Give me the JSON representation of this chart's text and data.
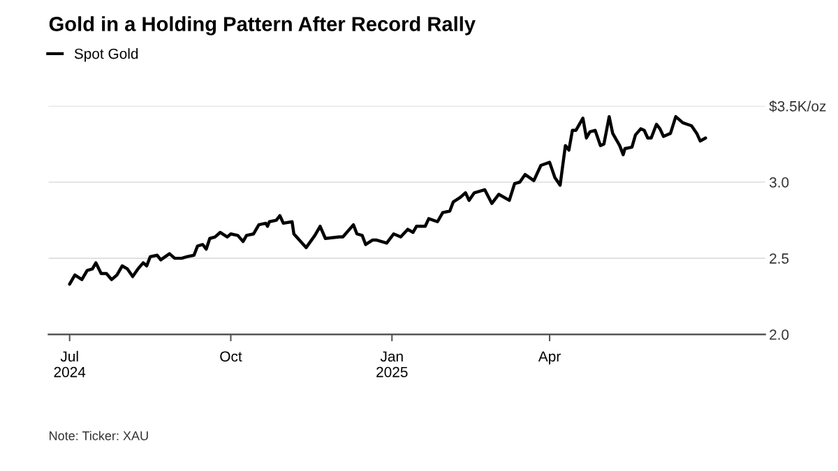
{
  "chart_data": {
    "type": "line",
    "title": "Gold in a Holding Pattern After Record Rally",
    "x": [
      "2024-07-01",
      "2024-07-04",
      "2024-07-08",
      "2024-07-11",
      "2024-07-14",
      "2024-07-16",
      "2024-07-19",
      "2024-07-22",
      "2024-07-25",
      "2024-07-28",
      "2024-07-31",
      "2024-08-03",
      "2024-08-06",
      "2024-08-09",
      "2024-08-12",
      "2024-08-14",
      "2024-08-16",
      "2024-08-20",
      "2024-08-22",
      "2024-08-27",
      "2024-08-30",
      "2024-09-03",
      "2024-09-06",
      "2024-09-10",
      "2024-09-12",
      "2024-09-15",
      "2024-09-17",
      "2024-09-19",
      "2024-09-22",
      "2024-09-25",
      "2024-09-29",
      "2024-10-01",
      "2024-10-05",
      "2024-10-08",
      "2024-10-10",
      "2024-10-14",
      "2024-10-17",
      "2024-10-21",
      "2024-10-22",
      "2024-10-23",
      "2024-10-27",
      "2024-10-29",
      "2024-10-31",
      "2024-11-05",
      "2024-11-06",
      "2024-11-13",
      "2024-11-18",
      "2024-11-21",
      "2024-11-24",
      "2024-12-02",
      "2024-12-04",
      "2024-12-10",
      "2024-12-12",
      "2024-12-15",
      "2024-12-17",
      "2024-12-21",
      "2024-12-23",
      "2024-12-29",
      "2025-01-02",
      "2025-01-06",
      "2025-01-10",
      "2025-01-13",
      "2025-01-15",
      "2025-01-20",
      "2025-01-22",
      "2025-01-27",
      "2025-01-30",
      "2025-02-03",
      "2025-02-05",
      "2025-02-09",
      "2025-02-12",
      "2025-02-14",
      "2025-02-17",
      "2025-02-23",
      "2025-02-27",
      "2025-03-03",
      "2025-03-09",
      "2025-03-12",
      "2025-03-15",
      "2025-03-18",
      "2025-03-23",
      "2025-03-27",
      "2025-04-01",
      "2025-04-04",
      "2025-04-07",
      "2025-04-10",
      "2025-04-12",
      "2025-04-14",
      "2025-04-16",
      "2025-04-20",
      "2025-04-22",
      "2025-04-24",
      "2025-04-27",
      "2025-04-30",
      "2025-05-02",
      "2025-05-05",
      "2025-05-07",
      "2025-05-09",
      "2025-05-11",
      "2025-05-13",
      "2025-05-14",
      "2025-05-18",
      "2025-05-20",
      "2025-05-23",
      "2025-05-25",
      "2025-05-27",
      "2025-05-29",
      "2025-06-01",
      "2025-06-03",
      "2025-06-05",
      "2025-06-09",
      "2025-06-12",
      "2025-06-16",
      "2025-06-21",
      "2025-06-24",
      "2025-06-26",
      "2025-06-29"
    ],
    "series": [
      {
        "name": "Spot Gold",
        "color": "#000000",
        "values": [
          2.33,
          2.39,
          2.36,
          2.42,
          2.43,
          2.47,
          2.4,
          2.4,
          2.36,
          2.39,
          2.45,
          2.43,
          2.38,
          2.43,
          2.47,
          2.45,
          2.51,
          2.52,
          2.49,
          2.53,
          2.5,
          2.5,
          2.51,
          2.52,
          2.58,
          2.59,
          2.56,
          2.63,
          2.64,
          2.67,
          2.64,
          2.66,
          2.65,
          2.61,
          2.65,
          2.66,
          2.72,
          2.73,
          2.71,
          2.74,
          2.75,
          2.78,
          2.73,
          2.74,
          2.66,
          2.57,
          2.65,
          2.71,
          2.63,
          2.64,
          2.64,
          2.72,
          2.66,
          2.65,
          2.59,
          2.62,
          2.62,
          2.6,
          2.66,
          2.64,
          2.69,
          2.67,
          2.71,
          2.71,
          2.76,
          2.74,
          2.8,
          2.81,
          2.87,
          2.9,
          2.93,
          2.88,
          2.93,
          2.95,
          2.86,
          2.92,
          2.88,
          2.99,
          3.0,
          3.05,
          3.01,
          3.11,
          3.13,
          3.03,
          2.98,
          3.24,
          3.21,
          3.34,
          3.34,
          3.42,
          3.29,
          3.33,
          3.34,
          3.24,
          3.25,
          3.43,
          3.32,
          3.28,
          3.24,
          3.18,
          3.22,
          3.23,
          3.31,
          3.35,
          3.34,
          3.29,
          3.29,
          3.38,
          3.35,
          3.3,
          3.32,
          3.43,
          3.39,
          3.37,
          3.32,
          3.27,
          3.29
        ]
      }
    ],
    "xlim": [
      "2024-06-19",
      "2025-08-02"
    ],
    "xticks": [
      {
        "value": "2024-07-01",
        "label": "Jul\n2024"
      },
      {
        "value": "2024-10-01",
        "label": "Oct"
      },
      {
        "value": "2025-01-01",
        "label": "Jan\n2025"
      },
      {
        "value": "2025-04-01",
        "label": "Apr"
      }
    ],
    "ylim": [
      2.0,
      3.5
    ],
    "yticks": [
      {
        "value": 2.0,
        "label": "2.0"
      },
      {
        "value": 2.5,
        "label": "2.5"
      },
      {
        "value": 3.0,
        "label": "3.0"
      },
      {
        "value": 3.5,
        "label": "$3.5K/oz"
      }
    ],
    "grid": "y",
    "legend": "top left",
    "marker": "none",
    "line_style": "solid",
    "annotations": [
      "Note: Ticker: XAU"
    ]
  }
}
